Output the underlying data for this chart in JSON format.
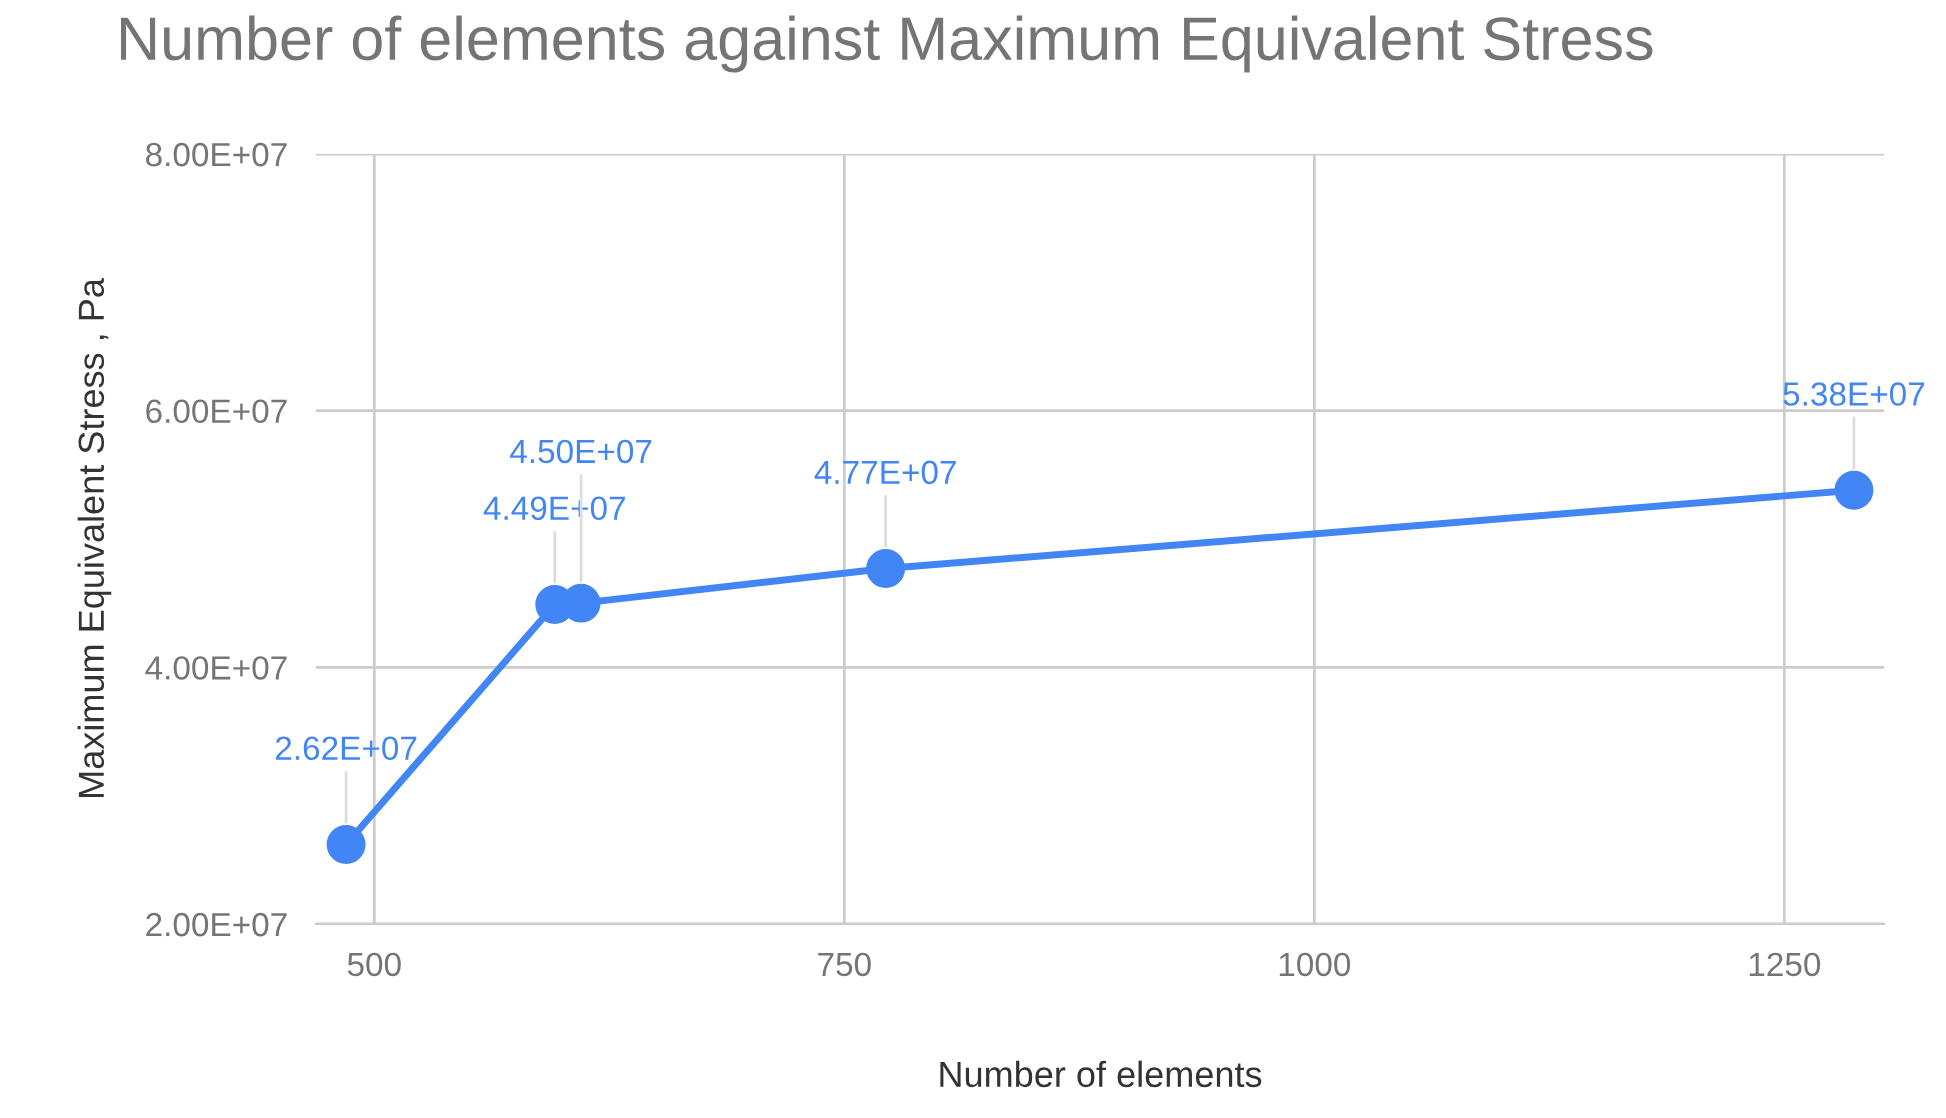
{
  "chart_data": {
    "type": "line",
    "title": "Number of elements against Maximum Equivalent Stress",
    "xlabel": "Number of elements",
    "ylabel": "Maximum Equivalent Stress , Pa",
    "x": [
      485,
      596,
      610,
      772,
      1287
    ],
    "series": [
      {
        "color": "#4285f4",
        "values": [
          26200000,
          44900000,
          45000000,
          47700000,
          53800000
        ],
        "value_labels": [
          "2.62E+07",
          "4.49E+07",
          "4.50E+07",
          "4.77E+07",
          "5.38E+07"
        ]
      }
    ],
    "xlim": [
      469,
      1303
    ],
    "xticks": [
      500,
      750,
      1000,
      1250
    ],
    "ylim": [
      20000000,
      80000000
    ],
    "yticks": [
      {
        "value": 20000000,
        "label": "2.00E+07"
      },
      {
        "value": 40000000,
        "label": "4.00E+07"
      },
      {
        "value": 60000000,
        "label": "6.00E+07"
      },
      {
        "value": 80000000,
        "label": "8.00E+07"
      }
    ],
    "grid": true,
    "marker": "circle",
    "line_style": "solid"
  }
}
